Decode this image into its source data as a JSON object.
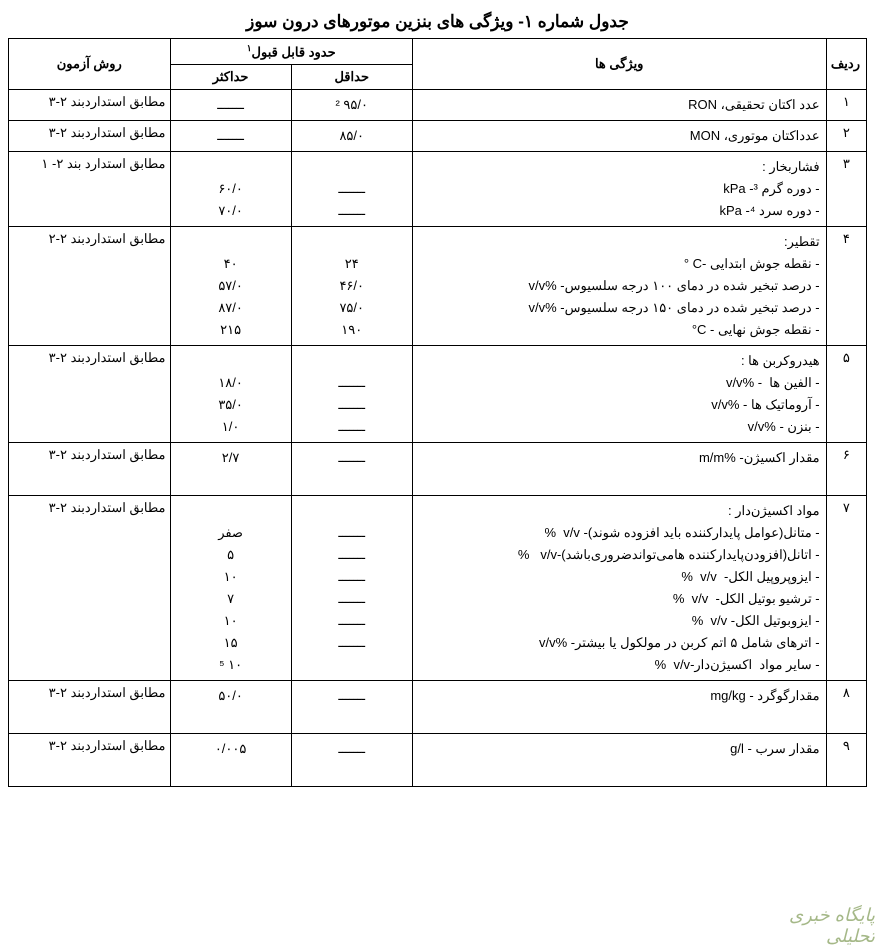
{
  "title": "جدول شماره ۱- ویژگی های بنزین موتورهای درون سوز",
  "headers": {
    "row": "ردیف",
    "spec": "ویژگی ها",
    "limits": "حدود قابل قبول",
    "limits_sup": "۱",
    "min": "حداقل",
    "max": "حداکثر",
    "method": "روش آزمون"
  },
  "rows": [
    {
      "num": "۱",
      "spec": [
        "عدد اکتان تحقیقی، RON"
      ],
      "min": [
        "۹۵/۰ ²"
      ],
      "max": [
        "ـــــــ"
      ],
      "method": "مطابق استداردبند ۲-۳"
    },
    {
      "num": "۲",
      "spec": [
        "عدداکتان موتوری، MON"
      ],
      "min": [
        "۸۵/۰"
      ],
      "max": [
        "ـــــــ"
      ],
      "method": "مطابق استداردبند ۲-۳"
    },
    {
      "num": "۳",
      "spec": [
        "فشاربخار :",
        "- دوره گرم ³- kPa",
        "- دوره سرد ⁴- kPa"
      ],
      "min": [
        "",
        "ـــــــ",
        "ـــــــ"
      ],
      "max": [
        "",
        "۶۰/۰",
        "۷۰/۰"
      ],
      "method": "مطابق استدارد بند ۲- ۱"
    },
    {
      "num": "۴",
      "spec": [
        "تقطیر:",
        "- نقطه جوش ابتدایی -C °",
        "- درصد تبخیر شده در دمای ۱۰۰ درجه سلسیوس- %v/v",
        "- درصد تبخیر شده در دمای ۱۵۰ درجه سلسیوس- %v/v",
        "- نقطه جوش نهایی - C°"
      ],
      "min": [
        "",
        "۲۴",
        "۴۶/۰",
        "۷۵/۰",
        "۱۹۰"
      ],
      "max": [
        "",
        "۴۰",
        "۵۷/۰",
        "۸۷/۰",
        "۲۱۵"
      ],
      "method": "مطابق استداردبند ۲-۲"
    },
    {
      "num": "۵",
      "spec": [
        "هیدروکربن ها :",
        "- الفین ها  - %v/v",
        "- آروماتیک ها - %v/v",
        "- بنزن - %v/v"
      ],
      "min": [
        "",
        "ـــــــ",
        "ـــــــ",
        "ـــــــ"
      ],
      "max": [
        "",
        "۱۸/۰",
        "۳۵/۰",
        "۱/۰"
      ],
      "method": "مطابق استداردبند ۲-۳"
    },
    {
      "num": "۶",
      "spec": [
        "مقدار اکسیژن- %m/m",
        " "
      ],
      "min": [
        "ـــــــ",
        " "
      ],
      "max": [
        "۲/۷",
        " "
      ],
      "method": "مطابق استداردبند ۲-۳"
    },
    {
      "num": "۷",
      "spec": [
        "مواد اکسیژن‌دار :",
        "- متانل(عوامل پایدارکننده باید افزوده شوند)- v/v  %",
        "- اتانل(افزودن‌پایدارکننده هامی‌تواندضروری‌باشد)-v/v   %",
        "- ایزوپروپیل الکل-  v/v  %",
        "- ترشیو بوتیل الکل-  v/v  %",
        "- ایزوبوتیل الکل- v/v  %",
        "- اترهای شامل ۵ اتم کربن در مولکول یا بیشتر- %v/v",
        "- سایر مواد  اکسیژن‌دار-v/v  %"
      ],
      "min": [
        "",
        "ـــــــ",
        "ـــــــ",
        "ـــــــ",
        "ـــــــ",
        "ـــــــ",
        "ـــــــ",
        ""
      ],
      "max": [
        "",
        "صفر",
        "۵",
        "۱۰",
        "۷",
        "۱۰",
        "۱۵",
        "۱۰ ⁵"
      ],
      "method": "مطابق استداردبند ۲-۳"
    },
    {
      "num": "۸",
      "spec": [
        "مقدارگوگرد - mg/kg",
        " "
      ],
      "min": [
        "ـــــــ",
        " "
      ],
      "max": [
        "۵۰/۰",
        " "
      ],
      "method": "مطابق استداردبند ۲-۳"
    },
    {
      "num": "۹",
      "spec": [
        "مقدار سرب - g/l",
        " "
      ],
      "min": [
        "ـــــــ",
        " "
      ],
      "max": [
        "۰/۰۰۵",
        " "
      ],
      "method": "مطابق استداردبند ۲-۳"
    }
  ],
  "watermark": "پایگاه خبری تحلیلی"
}
